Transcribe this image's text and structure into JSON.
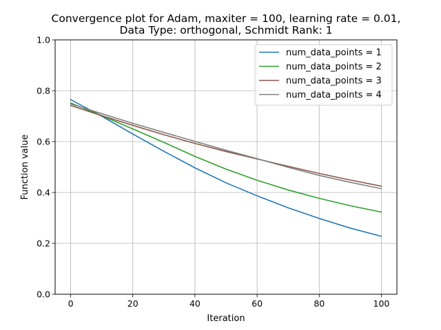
{
  "chart_data": {
    "type": "line",
    "title_line1": "Convergence plot for Adam, maxiter = 100, learning rate = 0.01,",
    "title_line2": "Data Type: orthogonal, Schmidt Rank: 1",
    "xlabel": "Iteration",
    "ylabel": "Function value",
    "xlim": [
      -5,
      105
    ],
    "ylim": [
      0.0,
      1.0
    ],
    "xticks": [
      0,
      20,
      40,
      60,
      80,
      100
    ],
    "xtick_labels": [
      "0",
      "20",
      "40",
      "60",
      "80",
      "100"
    ],
    "yticks": [
      0.0,
      0.2,
      0.4,
      0.6,
      0.8,
      1.0
    ],
    "ytick_labels": [
      "0.0",
      "0.2",
      "0.4",
      "0.6",
      "0.8",
      "1.0"
    ],
    "grid": true,
    "legend_position": "top-right",
    "x": [
      0,
      10,
      20,
      30,
      40,
      50,
      60,
      70,
      80,
      90,
      100
    ],
    "series": [
      {
        "name": "num_data_points = 1",
        "color": "#1f77b4",
        "values": [
          0.765,
          0.7,
          0.63,
          0.562,
          0.497,
          0.438,
          0.387,
          0.34,
          0.298,
          0.26,
          0.228
        ]
      },
      {
        "name": "num_data_points = 2",
        "color": "#2ca02c",
        "values": [
          0.752,
          0.702,
          0.65,
          0.597,
          0.542,
          0.492,
          0.448,
          0.41,
          0.377,
          0.348,
          0.323
        ]
      },
      {
        "name": "num_data_points = 3",
        "color": "#8c564b",
        "values": [
          0.742,
          0.702,
          0.664,
          0.627,
          0.593,
          0.561,
          0.532,
          0.503,
          0.475,
          0.449,
          0.425
        ]
      },
      {
        "name": "num_data_points = 4",
        "color": "#7f7f7f",
        "values": [
          0.748,
          0.71,
          0.672,
          0.636,
          0.601,
          0.566,
          0.533,
          0.499,
          0.467,
          0.44,
          0.415
        ]
      }
    ]
  }
}
